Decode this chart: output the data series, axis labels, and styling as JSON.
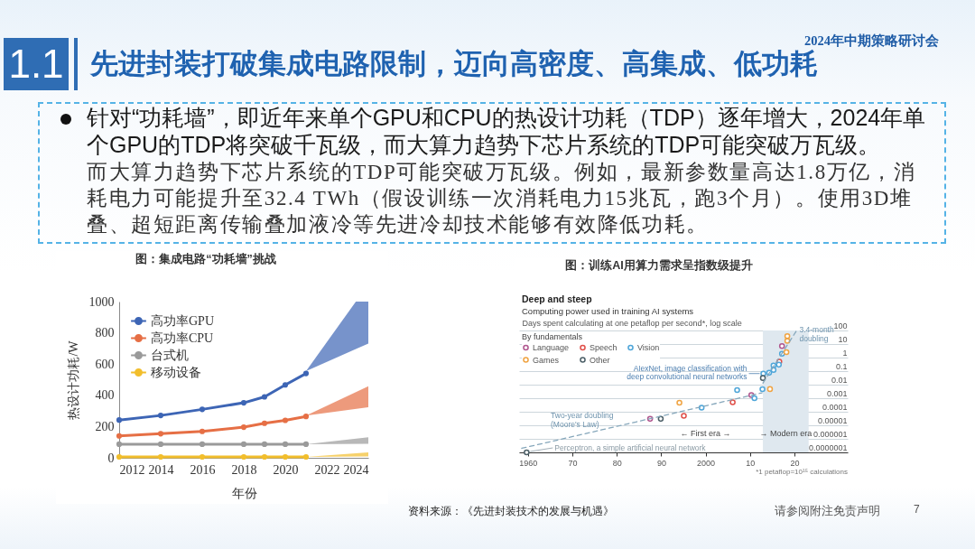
{
  "chart_data": [
    {
      "type": "other",
      "title": "先进封装打破集成电路限制，迈向高密度、高集成、低功耗",
      "annotations": [
        "1.1",
        "2024年中期策略研讨会",
        "针对“功耗墙”，即近年来单个GPU和CPU的热设计功耗（TDP）逐年增大，2024年单个GPU的TDP将突破千瓦级，而大算力趋势下芯片系统的TDP可能突破万瓦级。",
        "而大算力趋势下芯片系统的TDP可能突破万瓦级。例如，最新参数量高达1.8万亿，消耗电力可能提升至32.4 TWh（假设训练一次消耗电力15兆瓦，跑3个月）。使用3D堆叠、超短距离传输叠加液冷等先进冷却技术能够有效降低功耗。",
        "资料来源：《先进封装技术的发展与机遇》",
        "请参阅附注免责声明",
        "7"
      ]
    },
    {
      "type": "line",
      "title": "图：集成电路“功耗墙”挑战",
      "xlabel": "年份",
      "ylabel": "热设计功耗/W",
      "xlim": [
        2012,
        2024
      ],
      "xticks": [
        2012,
        2014,
        2016,
        2018,
        2020,
        2022,
        2024
      ],
      "ylim": [
        0,
        1000
      ],
      "yticks": [
        0,
        200,
        400,
        600,
        800,
        1000
      ],
      "legend": "top left",
      "marker": "circle",
      "series": [
        {
          "name": "高功率GPU",
          "color": "#3d65b5",
          "x": [
            2012,
            2014,
            2016,
            2018,
            2019,
            2020,
            2021,
            2023.4,
            2024
          ],
          "values": [
            242,
            271,
            310,
            352,
            390,
            467,
            540,
            null,
            null
          ],
          "lower": [
            null,
            null,
            null,
            null,
            null,
            null,
            555,
            696,
            731
          ],
          "upper": [
            null,
            null,
            null,
            null,
            null,
            null,
            555,
            1000,
            1000
          ]
        },
        {
          "name": "高功率CPU",
          "color": "#e66f45",
          "x": [
            2012,
            2014,
            2016,
            2018,
            2019,
            2020,
            2021,
            2024
          ],
          "values": [
            140,
            154,
            169,
            196,
            221,
            240,
            265,
            null
          ],
          "lower": [
            null,
            null,
            null,
            null,
            null,
            null,
            270,
            323
          ],
          "upper": [
            null,
            null,
            null,
            null,
            null,
            null,
            270,
            458
          ]
        },
        {
          "name": "台式机",
          "color": "#9a9a9a",
          "x": [
            2012,
            2014,
            2016,
            2018,
            2019,
            2020,
            2021,
            2024
          ],
          "values": [
            87,
            87,
            87,
            87,
            87,
            87,
            87,
            null
          ],
          "lower": [
            null,
            null,
            null,
            null,
            null,
            null,
            87,
            90
          ],
          "upper": [
            null,
            null,
            null,
            null,
            null,
            null,
            87,
            131
          ]
        },
        {
          "name": "移动设备",
          "color": "#f2be2c",
          "x": [
            2012,
            2014,
            2016,
            2018,
            2019,
            2020,
            2021,
            2024
          ],
          "values": [
            6,
            6,
            6,
            6,
            6,
            6,
            6,
            null
          ],
          "lower": [
            null,
            null,
            null,
            null,
            null,
            null,
            6,
            8
          ],
          "upper": [
            null,
            null,
            null,
            null,
            null,
            null,
            6,
            35
          ]
        }
      ]
    },
    {
      "type": "scatter",
      "title": "图：训练AI用算力需求呈指数级提升",
      "subtitle": "Deep and steep",
      "ylabel": "Days spent calculating at one petaflop per second*, log scale",
      "legend_title": "By fundamentals",
      "legend": "top left",
      "log": "y",
      "grid": "y",
      "marker": "circle",
      "xlim": [
        1958,
        2032
      ],
      "xticks": [
        1960,
        {
          "value": 1970,
          "label": "70"
        },
        {
          "value": 1980,
          "label": "80"
        },
        {
          "value": 1990,
          "label": "90"
        },
        2000,
        {
          "value": 2010,
          "label": "10"
        },
        {
          "value": 2020,
          "label": "20"
        }
      ],
      "ylim": [
        1e-07,
        100
      ],
      "yticks": [
        {
          "value": 1e-07,
          "label": "0.0000001"
        },
        {
          "value": 1e-06,
          "label": "0.000001"
        },
        {
          "value": 1e-05,
          "label": "0.00001"
        },
        0.0001,
        0.001,
        0.01,
        0.1,
        1,
        10,
        100
      ],
      "bands": [
        {
          "axis": "x",
          "from": 2012.9,
          "to": 2023.2,
          "label": "→ Modern era",
          "color": "#dfe8ef"
        }
      ],
      "series": [
        {
          "name": "Language",
          "color": "#b0578f",
          "x": [
            1987.5,
            2010.3,
            2017.2
          ],
          "values": [
            3e-05,
            0.0017,
            7
          ]
        },
        {
          "name": "Speech",
          "color": "#e0504a",
          "x": [
            1995.1,
            2006.1,
            2016.6
          ],
          "values": [
            5e-05,
            0.0005,
            0.5
          ]
        },
        {
          "name": "Vision",
          "color": "#4fa6d9",
          "x": [
            1999.1,
            2007.1,
            2011,
            2012.8,
            2013,
            2014.3,
            2015.3,
            2015.3,
            2016.5,
            2017.2
          ],
          "values": [
            0.0002,
            0.004,
            0.001,
            0.0046,
            0.066,
            0.075,
            0.12,
            0.26,
            0.3,
            1.9
          ]
        },
        {
          "name": "Games",
          "color": "#f0a443",
          "x": [
            1994.1,
            2014.5,
            2018.2,
            2018.4,
            2018.4
          ],
          "values": [
            0.00046,
            0.0047,
            2.5,
            17,
            38
          ]
        },
        {
          "name": "Other",
          "color": "#4d6068",
          "x": [
            1959.7,
            1989.9,
            2012.9
          ],
          "values": [
            1e-07,
            3e-05,
            0.031
          ]
        },
        {
          "type": "line",
          "color": "#86a7bb",
          "line_style": "dashed",
          "marker": "none",
          "x": [
            1958.6,
            2012.7
          ],
          "values": [
            2e-07,
            0.0025
          ]
        },
        {
          "type": "line",
          "color": "#86a7bb",
          "line_style": "dashed",
          "marker": "none",
          "x": [
            2012.9,
            2020.5
          ],
          "values": [
            0.013,
            100
          ]
        }
      ],
      "annotations": [
        "Computing power used in training AI systems",
        "*1 petaflop=10¹⁵ calculations",
        "← First era →",
        {
          "text": "Two-year doubling (Moore's Law)",
          "x": 1970,
          "y": 1.5e-06
        },
        {
          "text": "3.4-month doubling",
          "x": 2020.5,
          "y": 100
        },
        {
          "text": "AlexNet, image classification with deep convolutional neural networks",
          "x": 2013,
          "y": 0.066
        },
        {
          "text": "Perceptron, a simple artificial neural network",
          "x": 1959.7,
          "y": 1e-07
        }
      ]
    }
  ]
}
